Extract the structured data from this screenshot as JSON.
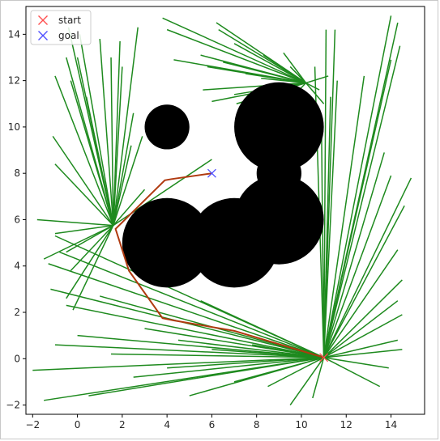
{
  "chart_data": {
    "type": "scatter",
    "title": "",
    "xlabel": "",
    "ylabel": "",
    "xlim": [
      -2.3,
      15.5
    ],
    "ylim": [
      -2.4,
      15.2
    ],
    "x_ticks": [
      -2,
      0,
      2,
      4,
      6,
      8,
      10,
      12,
      14
    ],
    "y_ticks": [
      -2,
      0,
      2,
      4,
      6,
      8,
      10,
      12,
      14
    ],
    "grid": false,
    "legend": {
      "placement": "top-left",
      "entries": [
        {
          "label": "start",
          "marker": "x",
          "color": "#ff4d4d"
        },
        {
          "label": "goal",
          "marker": "x",
          "color": "#4d4dff"
        }
      ]
    },
    "start": {
      "x": 11.0,
      "y": 0.05
    },
    "goal": {
      "x": 6.0,
      "y": 8.0
    },
    "obstacles": [
      {
        "cx": 4.0,
        "cy": 10.0,
        "r": 1.0
      },
      {
        "cx": 9.0,
        "cy": 10.0,
        "r": 2.0
      },
      {
        "cx": 9.0,
        "cy": 8.0,
        "r": 1.0
      },
      {
        "cx": 9.0,
        "cy": 6.0,
        "r": 2.0
      },
      {
        "cx": 7.0,
        "cy": 5.0,
        "r": 2.0
      },
      {
        "cx": 4.0,
        "cy": 5.0,
        "r": 2.0
      }
    ],
    "path": {
      "color": "#b03a10",
      "points": [
        [
          11.0,
          0.05
        ],
        [
          7.0,
          1.2
        ],
        [
          4.3,
          1.65
        ],
        [
          3.8,
          1.75
        ],
        [
          2.3,
          3.8
        ],
        [
          1.7,
          5.6
        ],
        [
          3.9,
          7.7
        ],
        [
          4.2,
          7.75
        ],
        [
          6.0,
          8.0
        ]
      ]
    },
    "tree": {
      "color": "#1e8a1e",
      "hubs": [
        {
          "x": 11.0,
          "y": 0.05,
          "ends": [
            [
              -2.0,
              -0.5
            ],
            [
              -1.5,
              -1.8
            ],
            [
              -1.0,
              0.6
            ],
            [
              0.5,
              -1.6
            ],
            [
              -1.2,
              3.0
            ],
            [
              -1.3,
              4.1
            ],
            [
              -1.0,
              5.3
            ],
            [
              -0.8,
              4.6
            ],
            [
              0.0,
              1.0
            ],
            [
              -0.5,
              2.3
            ],
            [
              1.0,
              2.7
            ],
            [
              1.5,
              0.2
            ],
            [
              2.5,
              -0.8
            ],
            [
              3.0,
              1.3
            ],
            [
              4.0,
              -0.4
            ],
            [
              4.5,
              0.8
            ],
            [
              5.0,
              -1.6
            ],
            [
              5.5,
              2.5
            ],
            [
              6.0,
              0.4
            ],
            [
              7.0,
              -1.0
            ],
            [
              7.8,
              0.6
            ],
            [
              8.5,
              -1.2
            ],
            [
              9.5,
              -2.0
            ],
            [
              10.5,
              -1.7
            ],
            [
              13.5,
              -1.2
            ],
            [
              14.5,
              0.4
            ],
            [
              14.3,
              0.8
            ],
            [
              13.9,
              -0.4
            ],
            [
              14.5,
              1.9
            ],
            [
              14.3,
              2.5
            ],
            [
              14.5,
              3.4
            ],
            [
              14.3,
              4.7
            ],
            [
              14.6,
              6.6
            ],
            [
              14.0,
              7.9
            ],
            [
              13.7,
              8.9
            ],
            [
              14.9,
              7.8
            ],
            [
              14.0,
              12.9
            ],
            [
              14.0,
              14.8
            ],
            [
              14.3,
              14.5
            ],
            [
              14.4,
              13.5
            ],
            [
              12.8,
              12.2
            ],
            [
              11.5,
              14.2
            ],
            [
              10.6,
              12.6
            ],
            [
              11.1,
              14.2
            ],
            [
              11.6,
              12.0
            ],
            [
              10.9,
              9.7
            ],
            [
              11.3,
              11.3
            ]
          ]
        },
        {
          "x": 1.6,
          "y": 5.75,
          "ends": [
            [
              -1.0,
              12.2
            ],
            [
              -0.4,
              14.3
            ],
            [
              -0.3,
              12.0
            ],
            [
              0.1,
              14.0
            ],
            [
              0.4,
              11.3
            ],
            [
              0.0,
              13.0
            ],
            [
              -0.5,
              13.0
            ],
            [
              1.0,
              13.8
            ],
            [
              1.9,
              13.7
            ],
            [
              2.0,
              12.6
            ],
            [
              1.5,
              13.0
            ],
            [
              2.5,
              10.6
            ],
            [
              2.7,
              14.3
            ],
            [
              2.4,
              9.2
            ],
            [
              2.9,
              9.6
            ],
            [
              3.0,
              7.3
            ],
            [
              6.0,
              8.6
            ],
            [
              -1.1,
              9.6
            ],
            [
              -1.0,
              8.4
            ],
            [
              -1.8,
              6.0
            ],
            [
              -1.5,
              4.3
            ],
            [
              -1.0,
              5.4
            ],
            [
              -0.5,
              4.6
            ],
            [
              -0.3,
              3.8
            ],
            [
              -0.2,
              2.1
            ],
            [
              -0.5,
              2.6
            ]
          ]
        },
        {
          "x": 10.2,
          "y": 11.9,
          "ends": [
            [
              3.8,
              14.7
            ],
            [
              6.2,
              14.5
            ],
            [
              4.0,
              14.2
            ],
            [
              5.5,
              13.1
            ],
            [
              4.3,
              12.9
            ],
            [
              6.5,
              12.8
            ],
            [
              7.5,
              12.3
            ],
            [
              8.2,
              12.1
            ],
            [
              8.3,
              13.1
            ],
            [
              6.0,
              11.1
            ],
            [
              5.6,
              11.6
            ],
            [
              7.0,
              11.4
            ],
            [
              7.8,
              11.3
            ],
            [
              8.5,
              11.8
            ],
            [
              5.8,
              12.6
            ],
            [
              6.3,
              14.2
            ],
            [
              7.0,
              13.6
            ],
            [
              9.2,
              13.2
            ],
            [
              9.5,
              12.6
            ],
            [
              10.8,
              11.6
            ],
            [
              11.2,
              12.2
            ],
            [
              11.0,
              11.0
            ],
            [
              9.9,
              11.6
            ],
            [
              7.1,
              11.0
            ]
          ]
        }
      ]
    }
  }
}
